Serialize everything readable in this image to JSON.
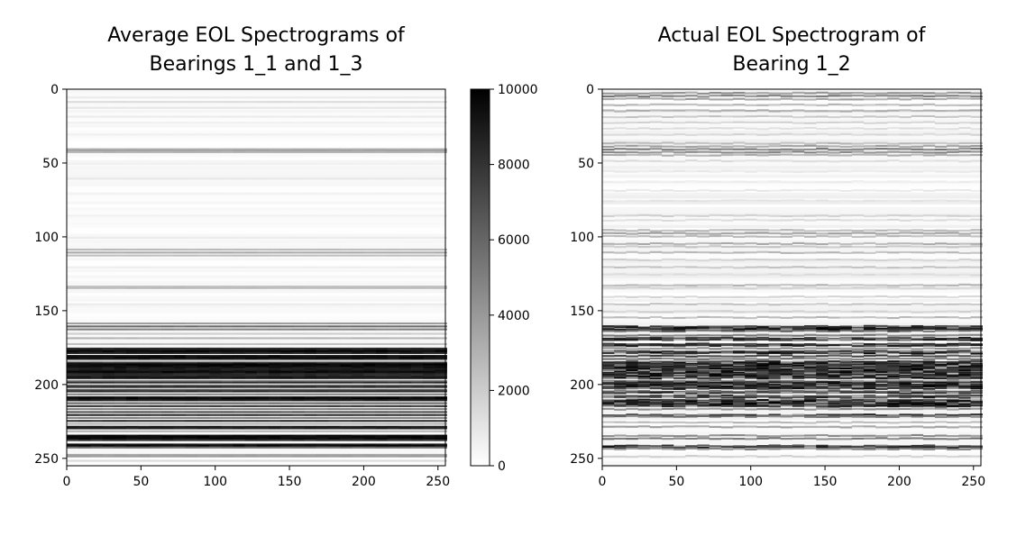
{
  "chart_data": [
    {
      "type": "heatmap",
      "title_line1": "Average EOL Spectrograms of",
      "title_line2": "Bearings 1_1 and 1_3",
      "xlabel": "",
      "ylabel": "",
      "xlim": [
        0,
        255
      ],
      "ylim": [
        255,
        0
      ],
      "x_ticks": [
        "0",
        "50",
        "100",
        "150",
        "200",
        "250"
      ],
      "y_ticks": [
        "0",
        "50",
        "100",
        "150",
        "200",
        "250"
      ],
      "colormap": "gray_r",
      "rows": 256,
      "columns": 256,
      "texture": 0.15,
      "row_intensity": [
        {
          "row": 5,
          "value": 0.08
        },
        {
          "row": 8,
          "value": 0.14
        },
        {
          "row": 12,
          "value": 0.1
        },
        {
          "row": 18,
          "value": 0.08
        },
        {
          "row": 22,
          "value": 0.06
        },
        {
          "row": 30,
          "value": 0.06
        },
        {
          "row": 40,
          "value": 0.32
        },
        {
          "row": 41,
          "value": 0.38
        },
        {
          "row": 42,
          "value": 0.3
        },
        {
          "row": 50,
          "value": 0.06
        },
        {
          "row": 60,
          "value": 0.1
        },
        {
          "row": 70,
          "value": 0.05
        },
        {
          "row": 85,
          "value": 0.06
        },
        {
          "row": 100,
          "value": 0.08
        },
        {
          "row": 108,
          "value": 0.28
        },
        {
          "row": 110,
          "value": 0.34
        },
        {
          "row": 112,
          "value": 0.26
        },
        {
          "row": 120,
          "value": 0.07
        },
        {
          "row": 133,
          "value": 0.24
        },
        {
          "row": 134,
          "value": 0.28
        },
        {
          "row": 145,
          "value": 0.08
        },
        {
          "row": 158,
          "value": 0.4
        },
        {
          "row": 160,
          "value": 0.6
        },
        {
          "row": 162,
          "value": 0.5
        },
        {
          "row": 165,
          "value": 0.2
        },
        {
          "row": 168,
          "value": 0.3
        },
        {
          "row": 172,
          "value": 0.25
        },
        {
          "row": 175,
          "value": 0.85
        },
        {
          "row": 176,
          "value": 0.95
        },
        {
          "row": 177,
          "value": 1.0
        },
        {
          "row": 178,
          "value": 0.9
        },
        {
          "row": 180,
          "value": 0.95
        },
        {
          "row": 181,
          "value": 1.0
        },
        {
          "row": 182,
          "value": 0.95
        },
        {
          "row": 184,
          "value": 0.4
        },
        {
          "row": 185,
          "value": 0.95
        },
        {
          "row": 186,
          "value": 1.0
        },
        {
          "row": 187,
          "value": 1.0
        },
        {
          "row": 188,
          "value": 0.95
        },
        {
          "row": 189,
          "value": 0.9
        },
        {
          "row": 190,
          "value": 0.95
        },
        {
          "row": 191,
          "value": 1.0
        },
        {
          "row": 192,
          "value": 0.9
        },
        {
          "row": 193,
          "value": 0.85
        },
        {
          "row": 194,
          "value": 0.9
        },
        {
          "row": 195,
          "value": 0.95
        },
        {
          "row": 197,
          "value": 0.5
        },
        {
          "row": 198,
          "value": 0.85
        },
        {
          "row": 200,
          "value": 0.6
        },
        {
          "row": 201,
          "value": 0.9
        },
        {
          "row": 203,
          "value": 0.7
        },
        {
          "row": 204,
          "value": 0.85
        },
        {
          "row": 206,
          "value": 0.5
        },
        {
          "row": 208,
          "value": 0.95
        },
        {
          "row": 209,
          "value": 1.0
        },
        {
          "row": 210,
          "value": 0.9
        },
        {
          "row": 212,
          "value": 0.6
        },
        {
          "row": 214,
          "value": 0.8
        },
        {
          "row": 216,
          "value": 0.5
        },
        {
          "row": 218,
          "value": 0.7
        },
        {
          "row": 220,
          "value": 0.85
        },
        {
          "row": 222,
          "value": 0.5
        },
        {
          "row": 224,
          "value": 0.85
        },
        {
          "row": 226,
          "value": 0.3
        },
        {
          "row": 228,
          "value": 0.95
        },
        {
          "row": 229,
          "value": 0.9
        },
        {
          "row": 231,
          "value": 0.3
        },
        {
          "row": 234,
          "value": 1.0
        },
        {
          "row": 235,
          "value": 1.0
        },
        {
          "row": 236,
          "value": 1.0
        },
        {
          "row": 237,
          "value": 0.85
        },
        {
          "row": 240,
          "value": 0.95
        },
        {
          "row": 241,
          "value": 1.0
        },
        {
          "row": 242,
          "value": 0.6
        },
        {
          "row": 247,
          "value": 0.35
        },
        {
          "row": 248,
          "value": 0.4
        },
        {
          "row": 251,
          "value": 0.15
        }
      ]
    },
    {
      "type": "colorbar",
      "range": [
        0,
        10000
      ],
      "ticks": [
        "0",
        "2000",
        "4000",
        "6000",
        "8000",
        "10000"
      ]
    },
    {
      "type": "heatmap",
      "title_line1": "Actual EOL Spectrogram of",
      "title_line2": "Bearing 1_2",
      "xlabel": "",
      "ylabel": "",
      "xlim": [
        0,
        255
      ],
      "ylim": [
        255,
        0
      ],
      "x_ticks": [
        "0",
        "50",
        "100",
        "150",
        "200",
        "250"
      ],
      "y_ticks": [
        "0",
        "50",
        "100",
        "150",
        "200",
        "250"
      ],
      "colormap": "gray_r",
      "rows": 256,
      "columns": 256,
      "texture": 0.6,
      "row_intensity": [
        {
          "row": 2,
          "value": 0.45
        },
        {
          "row": 4,
          "value": 0.55
        },
        {
          "row": 6,
          "value": 0.4
        },
        {
          "row": 10,
          "value": 0.3
        },
        {
          "row": 14,
          "value": 0.35
        },
        {
          "row": 18,
          "value": 0.25
        },
        {
          "row": 22,
          "value": 0.2
        },
        {
          "row": 26,
          "value": 0.15
        },
        {
          "row": 30,
          "value": 0.18
        },
        {
          "row": 36,
          "value": 0.3
        },
        {
          "row": 38,
          "value": 0.4
        },
        {
          "row": 40,
          "value": 0.55
        },
        {
          "row": 42,
          "value": 0.5
        },
        {
          "row": 44,
          "value": 0.35
        },
        {
          "row": 48,
          "value": 0.15
        },
        {
          "row": 55,
          "value": 0.1
        },
        {
          "row": 62,
          "value": 0.08
        },
        {
          "row": 68,
          "value": 0.1
        },
        {
          "row": 75,
          "value": 0.12
        },
        {
          "row": 85,
          "value": 0.2
        },
        {
          "row": 88,
          "value": 0.15
        },
        {
          "row": 95,
          "value": 0.3
        },
        {
          "row": 97,
          "value": 0.4
        },
        {
          "row": 99,
          "value": 0.3
        },
        {
          "row": 104,
          "value": 0.35
        },
        {
          "row": 106,
          "value": 0.25
        },
        {
          "row": 110,
          "value": 0.3
        },
        {
          "row": 115,
          "value": 0.2
        },
        {
          "row": 120,
          "value": 0.25
        },
        {
          "row": 125,
          "value": 0.15
        },
        {
          "row": 132,
          "value": 0.3
        },
        {
          "row": 134,
          "value": 0.2
        },
        {
          "row": 140,
          "value": 0.18
        },
        {
          "row": 145,
          "value": 0.25
        },
        {
          "row": 150,
          "value": 0.2
        },
        {
          "row": 154,
          "value": 0.3
        },
        {
          "row": 160,
          "value": 0.85
        },
        {
          "row": 161,
          "value": 0.95
        },
        {
          "row": 162,
          "value": 1.0
        },
        {
          "row": 163,
          "value": 0.7
        },
        {
          "row": 166,
          "value": 0.6
        },
        {
          "row": 168,
          "value": 0.9
        },
        {
          "row": 169,
          "value": 0.95
        },
        {
          "row": 172,
          "value": 0.95
        },
        {
          "row": 173,
          "value": 1.0
        },
        {
          "row": 175,
          "value": 0.5
        },
        {
          "row": 177,
          "value": 0.95
        },
        {
          "row": 178,
          "value": 1.0
        },
        {
          "row": 180,
          "value": 0.8
        },
        {
          "row": 182,
          "value": 0.6
        },
        {
          "row": 184,
          "value": 0.95
        },
        {
          "row": 185,
          "value": 1.0
        },
        {
          "row": 186,
          "value": 1.0
        },
        {
          "row": 187,
          "value": 1.0
        },
        {
          "row": 188,
          "value": 1.0
        },
        {
          "row": 189,
          "value": 1.0
        },
        {
          "row": 190,
          "value": 1.0
        },
        {
          "row": 191,
          "value": 1.0
        },
        {
          "row": 192,
          "value": 0.95
        },
        {
          "row": 193,
          "value": 1.0
        },
        {
          "row": 194,
          "value": 1.0
        },
        {
          "row": 195,
          "value": 0.95
        },
        {
          "row": 197,
          "value": 0.6
        },
        {
          "row": 198,
          "value": 0.95
        },
        {
          "row": 199,
          "value": 1.0
        },
        {
          "row": 200,
          "value": 1.0
        },
        {
          "row": 201,
          "value": 1.0
        },
        {
          "row": 202,
          "value": 0.95
        },
        {
          "row": 204,
          "value": 0.7
        },
        {
          "row": 205,
          "value": 0.9
        },
        {
          "row": 207,
          "value": 0.85
        },
        {
          "row": 208,
          "value": 0.9
        },
        {
          "row": 210,
          "value": 0.95
        },
        {
          "row": 211,
          "value": 1.0
        },
        {
          "row": 212,
          "value": 1.0
        },
        {
          "row": 213,
          "value": 1.0
        },
        {
          "row": 214,
          "value": 0.95
        },
        {
          "row": 216,
          "value": 0.5
        },
        {
          "row": 220,
          "value": 0.85
        },
        {
          "row": 221,
          "value": 0.6
        },
        {
          "row": 225,
          "value": 0.3
        },
        {
          "row": 228,
          "value": 0.4
        },
        {
          "row": 234,
          "value": 0.5
        },
        {
          "row": 236,
          "value": 0.6
        },
        {
          "row": 241,
          "value": 0.9
        },
        {
          "row": 242,
          "value": 0.95
        },
        {
          "row": 243,
          "value": 0.5
        },
        {
          "row": 248,
          "value": 0.2
        }
      ]
    }
  ]
}
